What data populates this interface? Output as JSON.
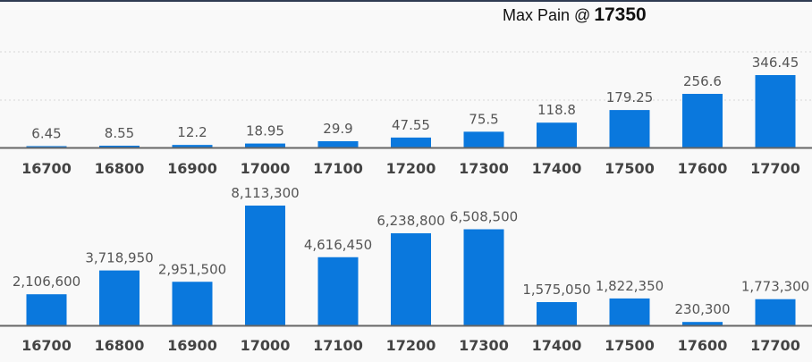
{
  "header": {
    "title_label": "Max Pain @",
    "title_value": "17350"
  },
  "colors": {
    "bar": "#0a78dd",
    "axis": "#666666",
    "grid": "#d8d8d8",
    "label": "#555555",
    "tick": "#444444"
  },
  "chart_data": [
    {
      "type": "bar",
      "name": "top-chart",
      "categories": [
        "16700",
        "16800",
        "16900",
        "17000",
        "17100",
        "17200",
        "17300",
        "17400",
        "17500",
        "17600",
        "17700"
      ],
      "values": [
        6.45,
        8.55,
        12.2,
        18.95,
        29.9,
        47.55,
        75.5,
        118.8,
        179.25,
        256.6,
        346.45
      ],
      "value_labels": [
        "6.45",
        "8.55",
        "12.2",
        "18.95",
        "29.9",
        "47.55",
        "75.5",
        "118.8",
        "179.25",
        "256.6",
        "346.45"
      ],
      "ylim": [
        0,
        400
      ],
      "grid": true
    },
    {
      "type": "bar",
      "name": "bottom-chart",
      "categories": [
        "16700",
        "16800",
        "16900",
        "17000",
        "17100",
        "17200",
        "17300",
        "17400",
        "17500",
        "17600",
        "17700"
      ],
      "values": [
        2106600,
        3718950,
        2951500,
        8113300,
        4616450,
        6238800,
        6508500,
        1575050,
        1822350,
        230300,
        1773300
      ],
      "value_labels": [
        "2,106,600",
        "3,718,950",
        "2,951,500",
        "8,113,300",
        "4,616,450",
        "6,238,800",
        "6,508,500",
        "1,575,050",
        "1,822,350",
        "230,300",
        "1,773,300"
      ],
      "ylim": [
        0,
        8113300
      ],
      "grid": false
    }
  ]
}
